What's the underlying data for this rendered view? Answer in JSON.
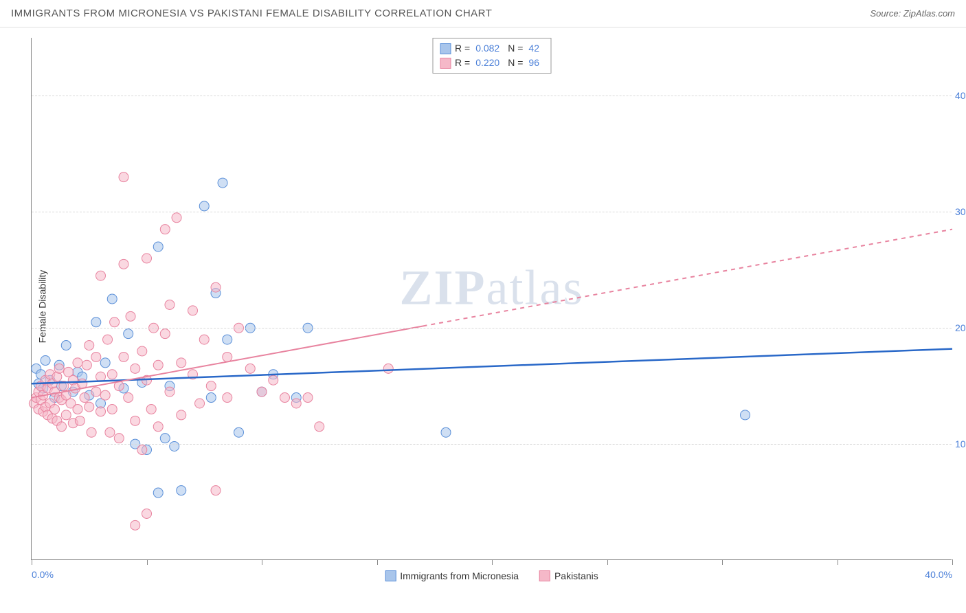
{
  "title": "IMMIGRANTS FROM MICRONESIA VS PAKISTANI FEMALE DISABILITY CORRELATION CHART",
  "source": "Source: ZipAtlas.com",
  "watermark_bold": "ZIP",
  "watermark_rest": "atlas",
  "chart": {
    "type": "scatter",
    "ylabel": "Female Disability",
    "xlim": [
      0,
      40
    ],
    "ylim": [
      0,
      45
    ],
    "y_ticks": [
      10,
      20,
      30,
      40
    ],
    "y_tick_labels": [
      "10.0%",
      "20.0%",
      "30.0%",
      "40.0%"
    ],
    "x_ticks": [
      0,
      5,
      10,
      15,
      20,
      25,
      30,
      35,
      40
    ],
    "x_tick_labels_shown": {
      "0": "0.0%",
      "40": "40.0%"
    },
    "background_color": "#ffffff",
    "grid_color": "#d8d8d8",
    "axis_color": "#888888",
    "tick_label_color": "#4a7fd8",
    "marker_radius": 7,
    "marker_opacity": 0.55,
    "series": [
      {
        "name": "Immigrants from Micronesia",
        "fill_color": "#a8c5eb",
        "stroke_color": "#5a8fd8",
        "line_color": "#2968c8",
        "line_width": 2.5,
        "line_dash": "none",
        "R": "0.082",
        "N": "42",
        "regression": {
          "x1": 0,
          "y1": 15.2,
          "x2": 40,
          "y2": 18.2
        },
        "points": [
          [
            0.2,
            16.5
          ],
          [
            0.3,
            15.2
          ],
          [
            0.4,
            16.0
          ],
          [
            0.5,
            14.8
          ],
          [
            0.6,
            17.2
          ],
          [
            0.8,
            15.5
          ],
          [
            1.0,
            14.0
          ],
          [
            1.2,
            16.8
          ],
          [
            1.3,
            15.0
          ],
          [
            1.5,
            18.5
          ],
          [
            1.8,
            14.5
          ],
          [
            2.0,
            16.2
          ],
          [
            2.2,
            15.8
          ],
          [
            2.5,
            14.2
          ],
          [
            2.8,
            20.5
          ],
          [
            3.0,
            13.5
          ],
          [
            3.2,
            17.0
          ],
          [
            3.5,
            22.5
          ],
          [
            4.0,
            14.8
          ],
          [
            4.2,
            19.5
          ],
          [
            4.5,
            10.0
          ],
          [
            4.8,
            15.3
          ],
          [
            5.0,
            9.5
          ],
          [
            5.5,
            27.0
          ],
          [
            5.8,
            10.5
          ],
          [
            6.0,
            15.0
          ],
          [
            6.2,
            9.8
          ],
          [
            5.5,
            5.8
          ],
          [
            6.5,
            6.0
          ],
          [
            7.5,
            30.5
          ],
          [
            7.8,
            14.0
          ],
          [
            8.0,
            23.0
          ],
          [
            8.3,
            32.5
          ],
          [
            8.5,
            19.0
          ],
          [
            9.0,
            11.0
          ],
          [
            9.5,
            20.0
          ],
          [
            10.0,
            14.5
          ],
          [
            10.5,
            16.0
          ],
          [
            11.5,
            14.0
          ],
          [
            12.0,
            20.0
          ],
          [
            18.0,
            11.0
          ],
          [
            31.0,
            12.5
          ]
        ]
      },
      {
        "name": "Pakistanis",
        "fill_color": "#f5b8c8",
        "stroke_color": "#e8839f",
        "line_color": "#e8839f",
        "line_width": 2,
        "line_dash": "partial",
        "dash_transition_x": 17,
        "R": "0.220",
        "N": "96",
        "regression": {
          "x1": 0,
          "y1": 14.0,
          "x2": 40,
          "y2": 28.5
        },
        "points": [
          [
            0.1,
            13.5
          ],
          [
            0.2,
            14.0
          ],
          [
            0.3,
            14.5
          ],
          [
            0.3,
            13.0
          ],
          [
            0.4,
            15.0
          ],
          [
            0.4,
            13.8
          ],
          [
            0.5,
            14.2
          ],
          [
            0.5,
            12.8
          ],
          [
            0.6,
            15.5
          ],
          [
            0.6,
            13.2
          ],
          [
            0.7,
            14.8
          ],
          [
            0.7,
            12.5
          ],
          [
            0.8,
            16.0
          ],
          [
            0.8,
            13.5
          ],
          [
            0.9,
            15.2
          ],
          [
            0.9,
            12.2
          ],
          [
            1.0,
            14.5
          ],
          [
            1.0,
            13.0
          ],
          [
            1.1,
            15.8
          ],
          [
            1.1,
            12.0
          ],
          [
            1.2,
            14.0
          ],
          [
            1.2,
            16.5
          ],
          [
            1.3,
            13.8
          ],
          [
            1.3,
            11.5
          ],
          [
            1.4,
            15.0
          ],
          [
            1.5,
            14.2
          ],
          [
            1.5,
            12.5
          ],
          [
            1.6,
            16.2
          ],
          [
            1.7,
            13.5
          ],
          [
            1.8,
            15.5
          ],
          [
            1.8,
            11.8
          ],
          [
            1.9,
            14.8
          ],
          [
            2.0,
            13.0
          ],
          [
            2.0,
            17.0
          ],
          [
            2.1,
            12.0
          ],
          [
            2.2,
            15.2
          ],
          [
            2.3,
            14.0
          ],
          [
            2.4,
            16.8
          ],
          [
            2.5,
            13.2
          ],
          [
            2.5,
            18.5
          ],
          [
            2.6,
            11.0
          ],
          [
            2.8,
            14.5
          ],
          [
            2.8,
            17.5
          ],
          [
            3.0,
            15.8
          ],
          [
            3.0,
            12.8
          ],
          [
            3.0,
            24.5
          ],
          [
            3.2,
            14.2
          ],
          [
            3.3,
            19.0
          ],
          [
            3.4,
            11.0
          ],
          [
            3.5,
            16.0
          ],
          [
            3.5,
            13.0
          ],
          [
            3.6,
            20.5
          ],
          [
            3.8,
            15.0
          ],
          [
            3.8,
            10.5
          ],
          [
            4.0,
            17.5
          ],
          [
            4.0,
            25.5
          ],
          [
            4.0,
            33.0
          ],
          [
            4.2,
            14.0
          ],
          [
            4.3,
            21.0
          ],
          [
            4.5,
            16.5
          ],
          [
            4.5,
            12.0
          ],
          [
            4.5,
            3.0
          ],
          [
            4.8,
            18.0
          ],
          [
            4.8,
            9.5
          ],
          [
            5.0,
            15.5
          ],
          [
            5.0,
            26.0
          ],
          [
            5.0,
            4.0
          ],
          [
            5.2,
            13.0
          ],
          [
            5.3,
            20.0
          ],
          [
            5.5,
            16.8
          ],
          [
            5.5,
            11.5
          ],
          [
            5.8,
            19.5
          ],
          [
            5.8,
            28.5
          ],
          [
            6.0,
            14.5
          ],
          [
            6.0,
            22.0
          ],
          [
            6.3,
            29.5
          ],
          [
            6.5,
            17.0
          ],
          [
            6.5,
            12.5
          ],
          [
            7.0,
            16.0
          ],
          [
            7.0,
            21.5
          ],
          [
            7.3,
            13.5
          ],
          [
            7.5,
            19.0
          ],
          [
            7.8,
            15.0
          ],
          [
            8.0,
            23.5
          ],
          [
            8.0,
            6.0
          ],
          [
            8.5,
            17.5
          ],
          [
            8.5,
            14.0
          ],
          [
            9.0,
            20.0
          ],
          [
            9.5,
            16.5
          ],
          [
            10.0,
            14.5
          ],
          [
            10.5,
            15.5
          ],
          [
            11.0,
            14.0
          ],
          [
            11.5,
            13.5
          ],
          [
            12.0,
            14.0
          ],
          [
            12.5,
            11.5
          ],
          [
            15.5,
            16.5
          ]
        ]
      }
    ],
    "legend_labels": {
      "R_label": "R =",
      "N_label": "N ="
    },
    "bottom_legend": [
      {
        "swatch_fill": "#a8c5eb",
        "swatch_stroke": "#5a8fd8",
        "label": "Immigrants from Micronesia"
      },
      {
        "swatch_fill": "#f5b8c8",
        "swatch_stroke": "#e8839f",
        "label": "Pakistanis"
      }
    ]
  }
}
